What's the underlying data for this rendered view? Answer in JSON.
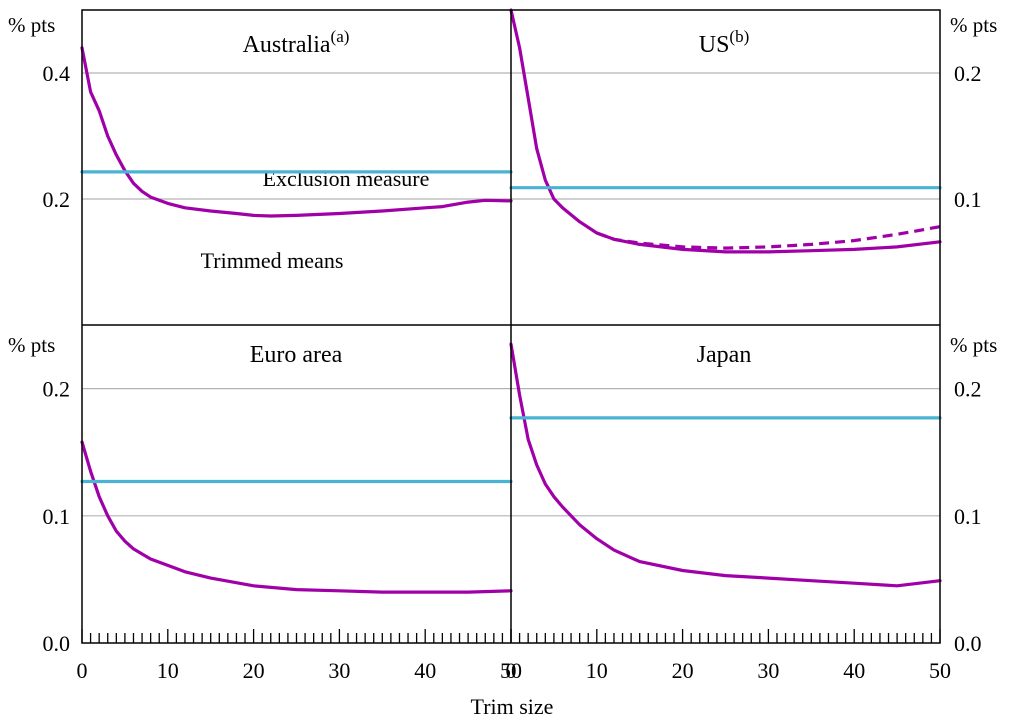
{
  "chart_data": {
    "type": "line",
    "xlabel": "Trim size",
    "x_ticks": [
      "0",
      "10",
      "20",
      "30",
      "40",
      "50"
    ],
    "xlim": [
      0,
      50
    ],
    "unit_label": "% pts",
    "colors": {
      "trimmed": "#a000a8",
      "exclusion": "#4ab3d4",
      "grid": "#b3b3b3"
    },
    "annotations": {
      "exclusion": "Exclusion measure",
      "trimmed": "Trimmed means"
    },
    "panels": [
      {
        "title": "Australia",
        "title_sup": "(a)",
        "ylim": [
          0,
          0.5
        ],
        "y_ticks": [
          "0.2",
          "0.4"
        ],
        "y_tick_values": [
          0.2,
          0.4
        ],
        "series": [
          {
            "style": "trimmed",
            "dashed": false,
            "x": [
              0,
              1,
              2,
              3,
              4,
              5,
              6,
              7,
              8,
              10,
              12,
              15,
              18,
              20,
              22,
              25,
              30,
              35,
              40,
              42,
              45,
              47,
              50
            ],
            "y": [
              0.44,
              0.37,
              0.34,
              0.3,
              0.27,
              0.245,
              0.225,
              0.212,
              0.203,
              0.193,
              0.186,
              0.181,
              0.177,
              0.174,
              0.173,
              0.174,
              0.177,
              0.181,
              0.186,
              0.188,
              0.195,
              0.198,
              0.197
            ]
          },
          {
            "style": "exclusion",
            "dashed": false,
            "x": [
              0,
              50
            ],
            "y": [
              0.243,
              0.243
            ]
          }
        ]
      },
      {
        "title": "US",
        "title_sup": "(b)",
        "ylim": [
          0,
          0.25
        ],
        "y_ticks": [
          "0.1",
          "0.2"
        ],
        "y_tick_values": [
          0.1,
          0.2
        ],
        "series": [
          {
            "style": "trimmed",
            "dashed": false,
            "x": [
              0,
              1,
              2,
              3,
              4,
              5,
              6,
              8,
              10,
              12,
              15,
              20,
              25,
              30,
              35,
              40,
              45,
              50
            ],
            "y": [
              0.25,
              0.22,
              0.18,
              0.14,
              0.115,
              0.1,
              0.093,
              0.082,
              0.073,
              0.068,
              0.064,
              0.06,
              0.058,
              0.058,
              0.059,
              0.06,
              0.062,
              0.066
            ]
          },
          {
            "style": "trimmed",
            "dashed": true,
            "x": [
              10,
              12,
              15,
              20,
              25,
              30,
              35,
              40,
              45,
              50
            ],
            "y": [
              0.073,
              0.068,
              0.065,
              0.062,
              0.061,
              0.062,
              0.064,
              0.067,
              0.072,
              0.078
            ]
          },
          {
            "style": "exclusion",
            "dashed": false,
            "x": [
              0,
              50
            ],
            "y": [
              0.109,
              0.109
            ]
          }
        ]
      },
      {
        "title": "Euro area",
        "title_sup": "",
        "ylim": [
          0,
          0.25
        ],
        "y_ticks": [
          "0.0",
          "0.1",
          "0.2"
        ],
        "y_tick_values": [
          0,
          0.1,
          0.2
        ],
        "series": [
          {
            "style": "trimmed",
            "dashed": false,
            "x": [
              0,
              1,
              2,
              3,
              4,
              5,
              6,
              7,
              8,
              10,
              12,
              15,
              20,
              25,
              30,
              35,
              40,
              45,
              50
            ],
            "y": [
              0.158,
              0.135,
              0.115,
              0.1,
              0.088,
              0.08,
              0.074,
              0.07,
              0.066,
              0.061,
              0.056,
              0.051,
              0.045,
              0.042,
              0.041,
              0.04,
              0.04,
              0.04,
              0.041
            ]
          },
          {
            "style": "exclusion",
            "dashed": false,
            "x": [
              0,
              50
            ],
            "y": [
              0.127,
              0.127
            ]
          }
        ]
      },
      {
        "title": "Japan",
        "title_sup": "",
        "ylim": [
          0,
          0.25
        ],
        "y_ticks": [
          "0.0",
          "0.1",
          "0.2"
        ],
        "y_tick_values": [
          0,
          0.1,
          0.2
        ],
        "series": [
          {
            "style": "trimmed",
            "dashed": false,
            "x": [
              0,
              1,
              2,
              3,
              4,
              5,
              6,
              8,
              10,
              12,
              15,
              20,
              25,
              30,
              35,
              40,
              45,
              50
            ],
            "y": [
              0.235,
              0.195,
              0.16,
              0.14,
              0.125,
              0.115,
              0.107,
              0.093,
              0.082,
              0.073,
              0.064,
              0.057,
              0.053,
              0.051,
              0.049,
              0.047,
              0.045,
              0.049
            ]
          },
          {
            "style": "exclusion",
            "dashed": false,
            "x": [
              0,
              50
            ],
            "y": [
              0.177,
              0.177
            ]
          }
        ]
      }
    ]
  }
}
